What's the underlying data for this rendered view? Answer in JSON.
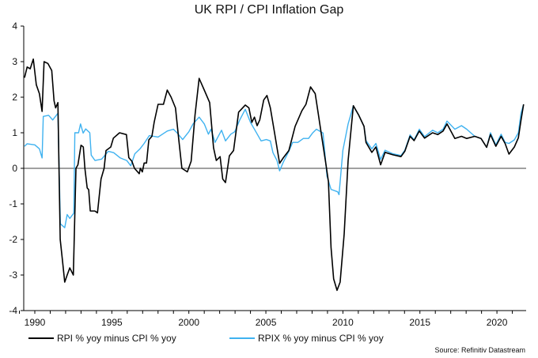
{
  "chart_data": {
    "type": "line",
    "title": "UK RPI / CPI Inflation Gap",
    "xlabel": "",
    "ylabel": "",
    "xlim": [
      1989.0,
      2021.9
    ],
    "ylim": [
      -4,
      4
    ],
    "x_ticks": [
      1990,
      1995,
      2000,
      2005,
      2010,
      2015,
      2020
    ],
    "x_tick_labels": [
      "1990",
      "1995",
      "2000",
      "2005",
      "2010",
      "2015",
      "2020"
    ],
    "y_ticks": [
      4,
      3,
      2,
      1,
      0,
      -1,
      -2,
      -3,
      -4
    ],
    "y_tick_labels": [
      "4",
      "3",
      "2",
      "1",
      "0",
      "-1",
      "-2",
      "-3",
      "-4"
    ],
    "grid": false,
    "zero_line": true,
    "legend_placement": "bottom",
    "source": "Source: Refinitiv Datastream",
    "series": [
      {
        "name": "RPI % yoy minus CPI % yoy",
        "color": "#000000",
        "points": [
          [
            1989.33,
            2.55
          ],
          [
            1989.5,
            2.85
          ],
          [
            1989.7,
            2.8
          ],
          [
            1989.9,
            3.07
          ],
          [
            1990.1,
            2.35
          ],
          [
            1990.3,
            2.1
          ],
          [
            1990.47,
            1.6
          ],
          [
            1990.6,
            3.0
          ],
          [
            1990.85,
            2.95
          ],
          [
            1991.1,
            2.75
          ],
          [
            1991.25,
            1.9
          ],
          [
            1991.35,
            1.7
          ],
          [
            1991.5,
            1.85
          ],
          [
            1991.55,
            0.5
          ],
          [
            1991.65,
            -2.0
          ],
          [
            1991.8,
            -2.6
          ],
          [
            1991.94,
            -3.2
          ],
          [
            1992.1,
            -3.0
          ],
          [
            1992.27,
            -2.8
          ],
          [
            1992.5,
            -3.0
          ],
          [
            1992.67,
            0.0
          ],
          [
            1992.8,
            0.1
          ],
          [
            1993.0,
            0.65
          ],
          [
            1993.15,
            0.6
          ],
          [
            1993.25,
            0.0
          ],
          [
            1993.4,
            -0.55
          ],
          [
            1993.5,
            -0.6
          ],
          [
            1993.6,
            -1.2
          ],
          [
            1993.9,
            -1.2
          ],
          [
            1994.07,
            -1.25
          ],
          [
            1994.3,
            -0.3
          ],
          [
            1994.5,
            0.0
          ],
          [
            1994.62,
            0.5
          ],
          [
            1994.93,
            0.6
          ],
          [
            1995.1,
            0.85
          ],
          [
            1995.5,
            1.0
          ],
          [
            1995.95,
            0.95
          ],
          [
            1996.1,
            0.3
          ],
          [
            1996.3,
            0.2
          ],
          [
            1996.47,
            0.0
          ],
          [
            1996.78,
            -0.15
          ],
          [
            1996.85,
            0.0
          ],
          [
            1996.98,
            -0.1
          ],
          [
            1997.1,
            0.15
          ],
          [
            1997.25,
            0.15
          ],
          [
            1997.4,
            0.8
          ],
          [
            1997.6,
            0.9
          ],
          [
            1997.75,
            1.3
          ],
          [
            1998.0,
            1.8
          ],
          [
            1998.35,
            1.8
          ],
          [
            1998.6,
            2.2
          ],
          [
            1998.85,
            2.0
          ],
          [
            1999.13,
            1.7
          ],
          [
            1999.35,
            0.8
          ],
          [
            1999.55,
            0.0
          ],
          [
            1999.9,
            -0.1
          ],
          [
            2000.15,
            0.2
          ],
          [
            2000.4,
            1.5
          ],
          [
            2000.67,
            2.53
          ],
          [
            2001.0,
            2.2
          ],
          [
            2001.35,
            1.85
          ],
          [
            2001.6,
            0.58
          ],
          [
            2001.78,
            0.22
          ],
          [
            2002.03,
            0.33
          ],
          [
            2002.2,
            -0.3
          ],
          [
            2002.38,
            -0.4
          ],
          [
            2002.63,
            0.35
          ],
          [
            2002.9,
            0.5
          ],
          [
            2003.23,
            1.58
          ],
          [
            2003.66,
            1.78
          ],
          [
            2003.9,
            1.7
          ],
          [
            2004.09,
            1.29
          ],
          [
            2004.26,
            1.44
          ],
          [
            2004.43,
            1.2
          ],
          [
            2004.6,
            1.36
          ],
          [
            2004.86,
            1.92
          ],
          [
            2005.07,
            2.05
          ],
          [
            2005.29,
            1.7
          ],
          [
            2005.55,
            1.03
          ],
          [
            2005.89,
            0.14
          ],
          [
            2006.14,
            0.3
          ],
          [
            2006.49,
            0.5
          ],
          [
            2006.9,
            1.18
          ],
          [
            2007.34,
            1.62
          ],
          [
            2007.6,
            1.8
          ],
          [
            2007.9,
            2.29
          ],
          [
            2008.2,
            2.1
          ],
          [
            2008.37,
            1.62
          ],
          [
            2008.63,
            0.88
          ],
          [
            2008.89,
            0.14
          ],
          [
            2009.06,
            -0.37
          ],
          [
            2009.23,
            -2.22
          ],
          [
            2009.4,
            -3.11
          ],
          [
            2009.62,
            -3.43
          ],
          [
            2009.82,
            -3.2
          ],
          [
            2010.08,
            -1.85
          ],
          [
            2010.34,
            0.22
          ],
          [
            2010.68,
            1.76
          ],
          [
            2011.02,
            1.5
          ],
          [
            2011.37,
            1.18
          ],
          [
            2011.5,
            0.73
          ],
          [
            2011.88,
            0.45
          ],
          [
            2012.14,
            0.6
          ],
          [
            2012.45,
            0.1
          ],
          [
            2012.74,
            0.45
          ],
          [
            2013.25,
            0.38
          ],
          [
            2013.77,
            0.33
          ],
          [
            2014.02,
            0.48
          ],
          [
            2014.36,
            0.9
          ],
          [
            2014.62,
            0.78
          ],
          [
            2014.96,
            1.05
          ],
          [
            2015.3,
            0.85
          ],
          [
            2015.82,
            1.0
          ],
          [
            2016.16,
            0.95
          ],
          [
            2016.5,
            1.05
          ],
          [
            2016.76,
            1.25
          ],
          [
            2017.27,
            0.84
          ],
          [
            2017.7,
            0.9
          ],
          [
            2018.04,
            0.84
          ],
          [
            2018.56,
            0.9
          ],
          [
            2018.97,
            0.84
          ],
          [
            2019.33,
            0.59
          ],
          [
            2019.58,
            0.95
          ],
          [
            2019.93,
            0.62
          ],
          [
            2020.27,
            0.9
          ],
          [
            2020.53,
            0.7
          ],
          [
            2020.78,
            0.4
          ],
          [
            2021.13,
            0.6
          ],
          [
            2021.39,
            0.86
          ],
          [
            2021.56,
            1.35
          ],
          [
            2021.73,
            1.8
          ]
        ]
      },
      {
        "name": "RPIX % yoy minus CPI % yoy",
        "color": "#3fb2f0",
        "points": [
          [
            1989.33,
            0.62
          ],
          [
            1989.5,
            0.69
          ],
          [
            1990.0,
            0.66
          ],
          [
            1990.3,
            0.55
          ],
          [
            1990.47,
            0.29
          ],
          [
            1990.55,
            1.46
          ],
          [
            1990.9,
            1.49
          ],
          [
            1991.16,
            1.36
          ],
          [
            1991.5,
            1.55
          ],
          [
            1991.66,
            -1.56
          ],
          [
            1991.94,
            -1.67
          ],
          [
            1992.1,
            -1.3
          ],
          [
            1992.27,
            -1.41
          ],
          [
            1992.53,
            -1.26
          ],
          [
            1992.6,
            1.0
          ],
          [
            1992.84,
            1.0
          ],
          [
            1992.97,
            1.25
          ],
          [
            1993.14,
            0.99
          ],
          [
            1993.3,
            1.11
          ],
          [
            1993.57,
            1.0
          ],
          [
            1993.66,
            0.37
          ],
          [
            1993.91,
            0.22
          ],
          [
            1994.34,
            0.26
          ],
          [
            1994.77,
            0.48
          ],
          [
            1995.12,
            0.44
          ],
          [
            1995.55,
            0.29
          ],
          [
            1995.97,
            0.22
          ],
          [
            1996.23,
            0.07
          ],
          [
            1996.49,
            0.41
          ],
          [
            1996.83,
            0.55
          ],
          [
            1997.1,
            0.7
          ],
          [
            1997.43,
            0.92
          ],
          [
            1998.0,
            0.88
          ],
          [
            1998.6,
            1.05
          ],
          [
            1999.0,
            1.1
          ],
          [
            1999.25,
            0.99
          ],
          [
            1999.6,
            0.81
          ],
          [
            2000.0,
            1.03
          ],
          [
            2000.27,
            1.25
          ],
          [
            2000.67,
            1.44
          ],
          [
            2001.0,
            1.25
          ],
          [
            2001.27,
            0.96
          ],
          [
            2001.44,
            1.1
          ],
          [
            2001.7,
            0.73
          ],
          [
            2002.12,
            1.07
          ],
          [
            2002.38,
            0.77
          ],
          [
            2002.72,
            0.96
          ],
          [
            2002.98,
            1.03
          ],
          [
            2003.3,
            1.36
          ],
          [
            2003.66,
            1.66
          ],
          [
            2004.0,
            1.29
          ],
          [
            2004.35,
            1.03
          ],
          [
            2004.69,
            0.77
          ],
          [
            2005.03,
            0.81
          ],
          [
            2005.29,
            0.77
          ],
          [
            2005.46,
            0.44
          ],
          [
            2005.72,
            0.22
          ],
          [
            2005.89,
            -0.07
          ],
          [
            2006.14,
            0.18
          ],
          [
            2006.49,
            0.48
          ],
          [
            2006.74,
            0.73
          ],
          [
            2007.08,
            0.73
          ],
          [
            2007.43,
            0.84
          ],
          [
            2007.77,
            0.84
          ],
          [
            2008.03,
            0.99
          ],
          [
            2008.28,
            1.1
          ],
          [
            2008.71,
            0.99
          ],
          [
            2008.97,
            -0.22
          ],
          [
            2009.23,
            -0.59
          ],
          [
            2009.66,
            -0.66
          ],
          [
            2009.75,
            -0.74
          ],
          [
            2010.0,
            0.51
          ],
          [
            2010.34,
            1.25
          ],
          [
            2010.68,
            1.76
          ],
          [
            2011.02,
            1.5
          ],
          [
            2011.37,
            1.18
          ],
          [
            2011.5,
            0.78
          ],
          [
            2011.88,
            0.55
          ],
          [
            2012.14,
            0.7
          ],
          [
            2012.45,
            0.25
          ],
          [
            2012.74,
            0.51
          ],
          [
            2013.25,
            0.41
          ],
          [
            2013.77,
            0.36
          ],
          [
            2014.02,
            0.51
          ],
          [
            2014.36,
            0.94
          ],
          [
            2014.62,
            0.8
          ],
          [
            2014.96,
            1.1
          ],
          [
            2015.3,
            0.89
          ],
          [
            2015.82,
            1.07
          ],
          [
            2016.16,
            1.0
          ],
          [
            2016.5,
            1.1
          ],
          [
            2016.76,
            1.33
          ],
          [
            2017.27,
            1.1
          ],
          [
            2017.7,
            1.2
          ],
          [
            2018.04,
            1.1
          ],
          [
            2018.56,
            0.9
          ],
          [
            2018.97,
            0.84
          ],
          [
            2019.33,
            0.59
          ],
          [
            2019.58,
            1.0
          ],
          [
            2019.93,
            0.66
          ],
          [
            2020.27,
            0.96
          ],
          [
            2020.53,
            0.73
          ],
          [
            2020.78,
            0.7
          ],
          [
            2021.13,
            0.8
          ],
          [
            2021.39,
            1.0
          ],
          [
            2021.56,
            1.55
          ],
          [
            2021.73,
            1.8
          ]
        ]
      }
    ]
  }
}
